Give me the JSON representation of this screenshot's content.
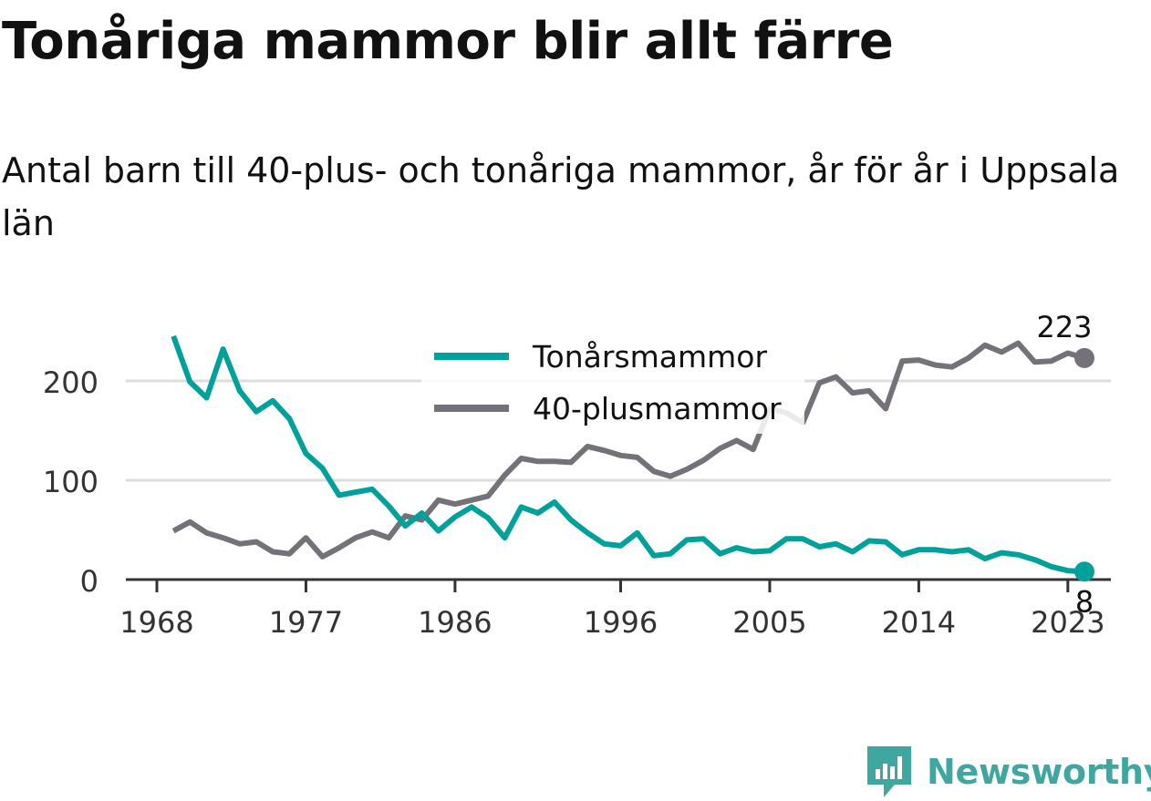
{
  "header": {
    "title": "Tonåriga mammor blir allt färre",
    "subtitle": "Antal barn till 40-plus- och tonåriga mammor, år för år i Uppsala län"
  },
  "chart_data": {
    "type": "line",
    "x": [
      1969,
      1970,
      1971,
      1972,
      1973,
      1974,
      1975,
      1976,
      1977,
      1978,
      1979,
      1980,
      1981,
      1982,
      1983,
      1984,
      1985,
      1986,
      1987,
      1988,
      1989,
      1990,
      1991,
      1992,
      1993,
      1994,
      1995,
      1996,
      1997,
      1998,
      1999,
      2000,
      2001,
      2002,
      2003,
      2004,
      2005,
      2006,
      2007,
      2008,
      2009,
      2010,
      2011,
      2012,
      2013,
      2014,
      2015,
      2016,
      2017,
      2018,
      2019,
      2020,
      2021,
      2022,
      2023,
      2024
    ],
    "series": [
      {
        "name": "Tonårsmammor",
        "color": "#00a19a",
        "values": [
          245,
          199,
          183,
          232,
          190,
          169,
          180,
          162,
          127,
          112,
          85,
          88,
          91,
          74,
          54,
          67,
          49,
          63,
          73,
          62,
          42,
          73,
          67,
          78,
          60,
          47,
          36,
          34,
          47,
          24,
          26,
          40,
          41,
          26,
          32,
          28,
          29,
          41,
          41,
          33,
          36,
          28,
          39,
          38,
          25,
          30,
          30,
          28,
          30,
          21,
          27,
          25,
          20,
          13,
          9,
          8
        ]
      },
      {
        "name": "40-plusmammor",
        "color": "#747278",
        "values": [
          49,
          58,
          47,
          42,
          36,
          38,
          28,
          26,
          42,
          23,
          32,
          42,
          48,
          42,
          64,
          60,
          80,
          76,
          80,
          84,
          105,
          122,
          119,
          119,
          118,
          134,
          130,
          125,
          123,
          109,
          104,
          111,
          120,
          132,
          140,
          131,
          172,
          168,
          158,
          198,
          204,
          188,
          190,
          172,
          220,
          221,
          216,
          214,
          223,
          236,
          229,
          238,
          219,
          220,
          228,
          223
        ]
      }
    ],
    "x_ticks": [
      "1968",
      "1977",
      "1986",
      "1996",
      "2005",
      "2014",
      "2023"
    ],
    "y_ticks": [
      "0",
      "100",
      "200"
    ],
    "ylim": [
      0,
      260
    ],
    "end_labels": [
      "8",
      "223"
    ],
    "legend": {
      "placement": "top-center",
      "entries": [
        "Tonårsmammor",
        "40-plusmammor"
      ]
    },
    "grid": true
  },
  "branding": {
    "name": "Newsworthy",
    "icon": "newsworthy-logo-icon",
    "color": "#40a7a0"
  }
}
